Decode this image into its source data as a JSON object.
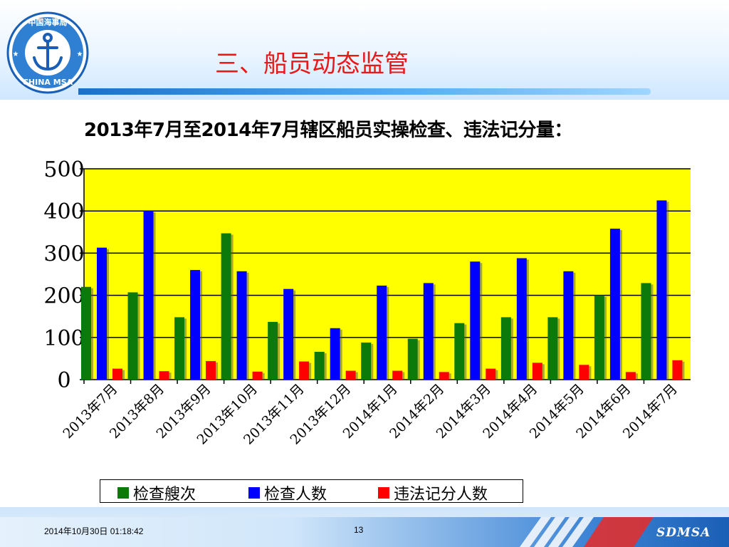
{
  "slide": {
    "title": "三、船员动态监管",
    "subtitle": "2013年7月至2014年7月辖区船员实操检查、违法记分量："
  },
  "logo": {
    "text_top": "中国海事局",
    "text_bottom": "CHINA MSA",
    "icon": "anchor-icon"
  },
  "footer": {
    "date": "2014年10月30日  01:18:42",
    "page": "13",
    "brand": "SDMSA"
  },
  "colors": {
    "plot_bg": "#ffff00",
    "green": "#0b7a0b",
    "blue": "#0000ff",
    "red": "#ff0000",
    "title": "#e81919"
  },
  "chart_data": {
    "type": "bar",
    "categories": [
      "2013年7月",
      "2013年8月",
      "2013年9月",
      "2013年10月",
      "2013年11月",
      "2013年12月",
      "2014年1月",
      "2014年2月",
      "2014年3月",
      "2014年4月",
      "2014年5月",
      "2014年6月",
      "2014年7月"
    ],
    "series": [
      {
        "name": "检查艘次",
        "color": "#0b7a0b",
        "values": [
          220,
          207,
          148,
          347,
          137,
          66,
          88,
          97,
          134,
          148,
          148,
          200,
          229
        ]
      },
      {
        "name": "检查人数",
        "color": "#0000ff",
        "values": [
          313,
          400,
          260,
          257,
          215,
          122,
          223,
          229,
          280,
          288,
          257,
          358,
          425
        ]
      },
      {
        "name": "违法记分人数",
        "color": "#ff0000",
        "values": [
          26,
          20,
          44,
          19,
          43,
          21,
          21,
          18,
          26,
          40,
          35,
          18,
          46
        ]
      }
    ],
    "ylim": [
      0,
      500
    ],
    "yticks": [
      0,
      100,
      200,
      300,
      400,
      500
    ],
    "grid": true,
    "legend_position": "bottom"
  }
}
